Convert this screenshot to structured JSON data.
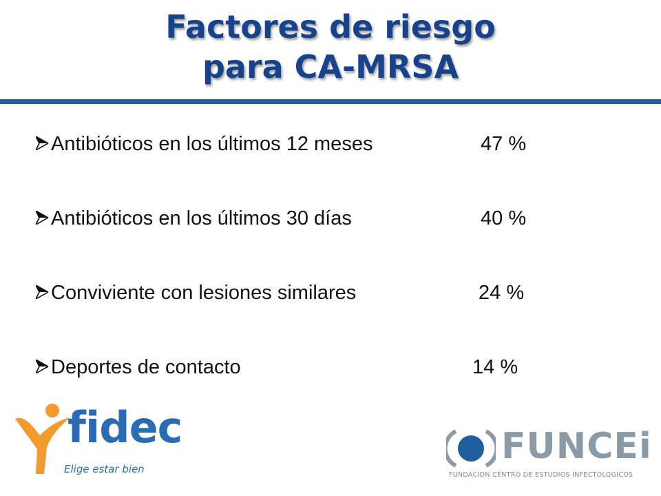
{
  "slide": {
    "title_line1": "Factores de riesgo",
    "title_line2": "para CA-MRSA"
  },
  "risk_factors": [
    {
      "label": "Antibióticos en los últimos 12 meses",
      "value": "47 %"
    },
    {
      "label": "Antibióticos en los últimos 30 días",
      "value": "40 %"
    },
    {
      "label": "Conviviente con lesiones similares",
      "value": "24 %"
    },
    {
      "label": "Deportes de contacto",
      "value": "14 %"
    }
  ],
  "logos": {
    "left": {
      "name": "fidec",
      "tagline": "Elige estar bien"
    },
    "right": {
      "name": "FUNCEi",
      "subtitle": "FUNDACION CENTRO DE ESTUDIOS INFECTOLOGICOS"
    }
  },
  "colors": {
    "title": "#17428c",
    "rule": "#1f5f97",
    "fidec_orange": "#f29a2e",
    "fidec_blue": "#2a6bb6",
    "funcei_blue": "#1f5fa0",
    "funcei_gray": "#8a9aa6"
  }
}
